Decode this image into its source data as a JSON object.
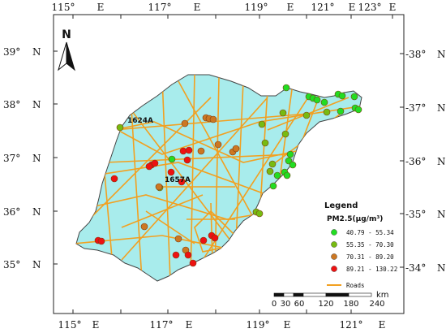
{
  "frame": {
    "top_lon_labels": [
      "115°",
      "E",
      "117°",
      "E",
      "119°",
      "E",
      "121°",
      "E",
      "123°",
      "E"
    ],
    "bottom_lon_labels": [
      "115°",
      "E",
      "117°",
      "E",
      "119°",
      "E",
      "121°",
      "E"
    ],
    "left_lat_labels": [
      {
        "deg": "39°",
        "dir": "N"
      },
      {
        "deg": "38°",
        "dir": "N"
      },
      {
        "deg": "37°",
        "dir": "N"
      },
      {
        "deg": "36°",
        "dir": "N"
      },
      {
        "deg": "35°",
        "dir": "N"
      }
    ],
    "right_lat_labels": [
      {
        "deg": "-38°",
        "dir": "N"
      },
      {
        "deg": "-37°",
        "dir": "N"
      },
      {
        "deg": "-36°",
        "dir": "N"
      },
      {
        "deg": "-35°",
        "dir": "N"
      },
      {
        "deg": "-34°",
        "dir": "N"
      }
    ]
  },
  "north_arrow": {
    "label": "N"
  },
  "station_labels": [
    "1624A",
    "1657A"
  ],
  "legend": {
    "title": "Legend",
    "subtitle": "PM2.5(μg/m³)",
    "items": [
      {
        "label": "40.79 - 55.34",
        "color": "#22dd22"
      },
      {
        "label": "55.35 - 70.30",
        "color": "#77bb11"
      },
      {
        "label": "70.31 - 89.20",
        "color": "#cc7722"
      },
      {
        "label": "89.21 - 130.22",
        "color": "#ee1111"
      }
    ],
    "roads_label": "Roads",
    "roads_color": "#f2a020"
  },
  "scale_bar": {
    "unit": "km",
    "ticks": [
      "0",
      "30",
      "60",
      "120",
      "180",
      "240"
    ]
  },
  "colors": {
    "land": "#a8ecec",
    "border": "#444444",
    "road": "#f2a020"
  }
}
